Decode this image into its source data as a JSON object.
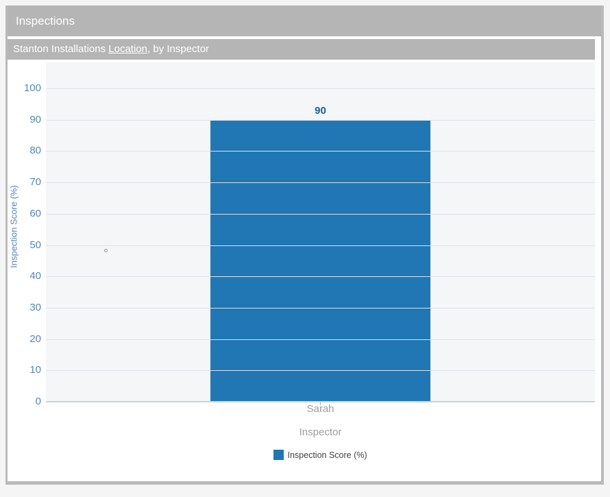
{
  "panel": {
    "title": "Inspections"
  },
  "subheader": {
    "prefix": "Stanton Installations ",
    "link": "Location",
    "suffix": ", by Inspector"
  },
  "chart_data": {
    "type": "bar",
    "title": "Stanton Installations Location, by Inspector",
    "categories": [
      "Sarah"
    ],
    "series": [
      {
        "name": "Inspection Score (%)",
        "values": [
          90
        ]
      }
    ],
    "value_labels": [
      90
    ],
    "xlabel": "Inspector",
    "ylabel": "Inspection Score (%)",
    "ylim": [
      0,
      100
    ],
    "yticks": [
      0,
      10,
      20,
      30,
      40,
      50,
      60,
      70,
      80,
      90,
      100
    ],
    "grid": true,
    "legend_position": "bottom",
    "bar_color": "#2077b4",
    "colors": {
      "header_bg": "#b5b5b5",
      "header_text": "#ffffff",
      "axis_text": "#5585b7",
      "category_text": "#9c9c9c",
      "value_label": "#17619e",
      "gridline": "#dce2ea"
    }
  }
}
